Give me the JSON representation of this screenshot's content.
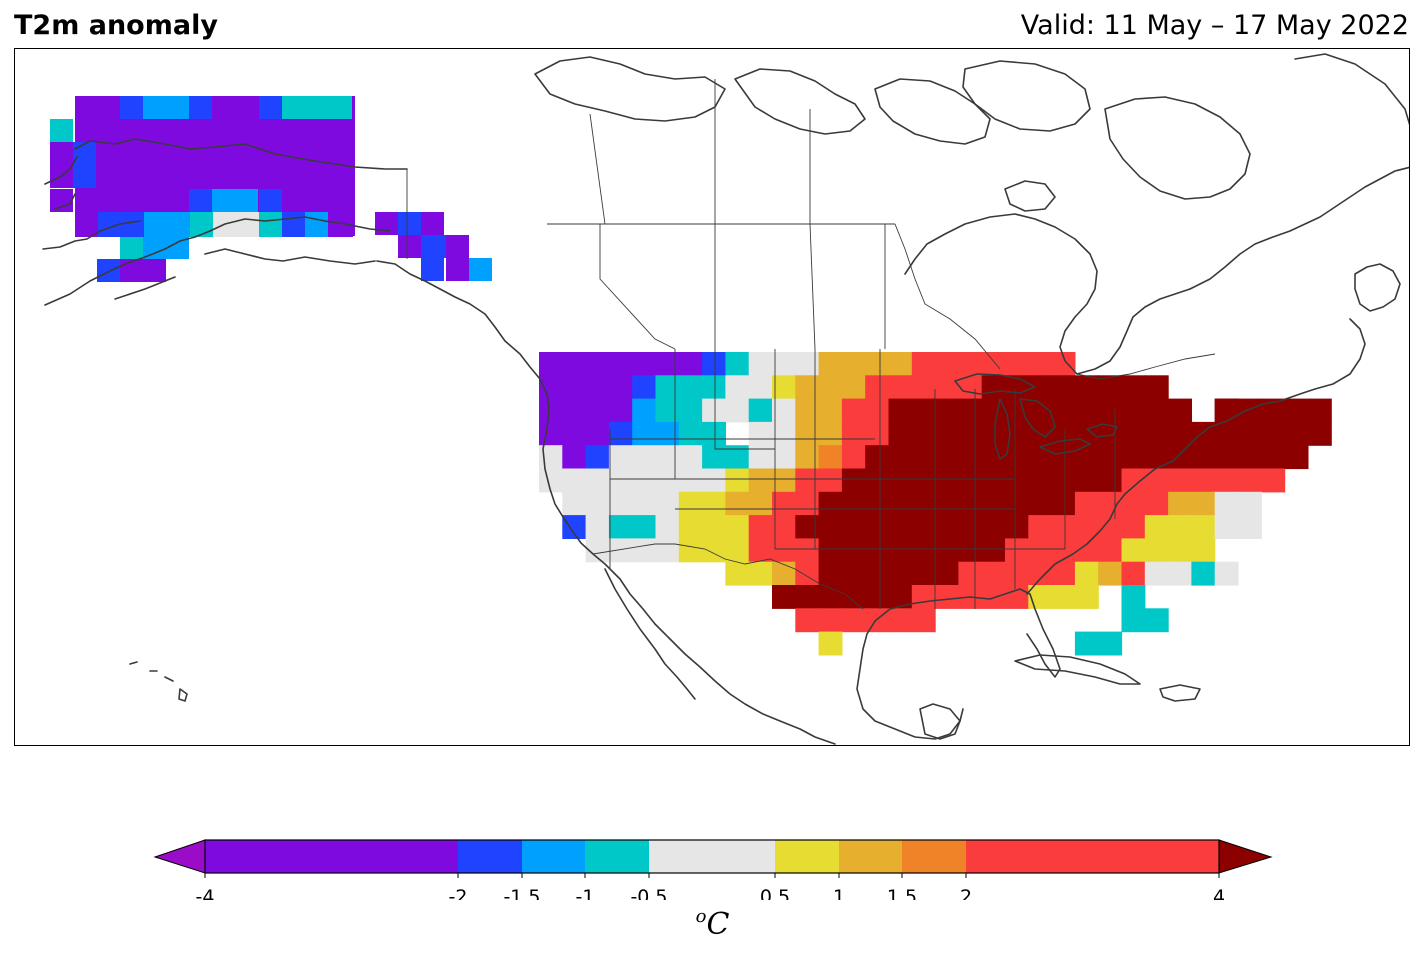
{
  "header": {
    "title": "T2m anomaly",
    "valid": "Valid: 11 May – 17 May 2022"
  },
  "legend": {
    "unit_base": "C",
    "unit_super": "o",
    "ticks": [
      "-4",
      "-2",
      "-1.5",
      "-1",
      "-0.5",
      "0.5",
      "1",
      "1.5",
      "2",
      "4"
    ],
    "bins": [
      {
        "range": "< -4",
        "color": "#9a0cc7"
      },
      {
        "range": "-4 to -2",
        "color": "#7e0ae0"
      },
      {
        "range": "-2 to -1.5",
        "color": "#2043ff"
      },
      {
        "range": "-1.5 to -1",
        "color": "#00a0ff"
      },
      {
        "range": "-1 to -0.5",
        "color": "#00c8c8"
      },
      {
        "range": "-0.5 to 0.5",
        "color": "#e6e6e6"
      },
      {
        "range": "0.5 to 1",
        "color": "#e6dc32"
      },
      {
        "range": "1 to 1.5",
        "color": "#e6af2d"
      },
      {
        "range": "1.5 to 2",
        "color": "#f08228"
      },
      {
        "range": "2 to 4",
        "color": "#fa3c3c"
      },
      {
        "range": "> 4",
        "color": "#8c0000"
      }
    ]
  },
  "map": {
    "region": "North America",
    "regional_pattern": [
      {
        "region": "Alaska",
        "category": "-4 to -2"
      },
      {
        "region": "Pacific Northwest",
        "category": "-4 to -2"
      },
      {
        "region": "Great Basin / Southwest",
        "category": "-0.5 to 0.5"
      },
      {
        "region": "Southern Rockies",
        "category": "0.5 to 1"
      },
      {
        "region": "Southern Plains",
        "category": "> 4"
      },
      {
        "region": "Midwest / Great Lakes",
        "category": "> 4"
      },
      {
        "region": "Northeast",
        "category": "> 4"
      },
      {
        "region": "Southeast",
        "category": "2 to 4"
      },
      {
        "region": "Florida",
        "category": "-1 to -0.5"
      }
    ]
  }
}
